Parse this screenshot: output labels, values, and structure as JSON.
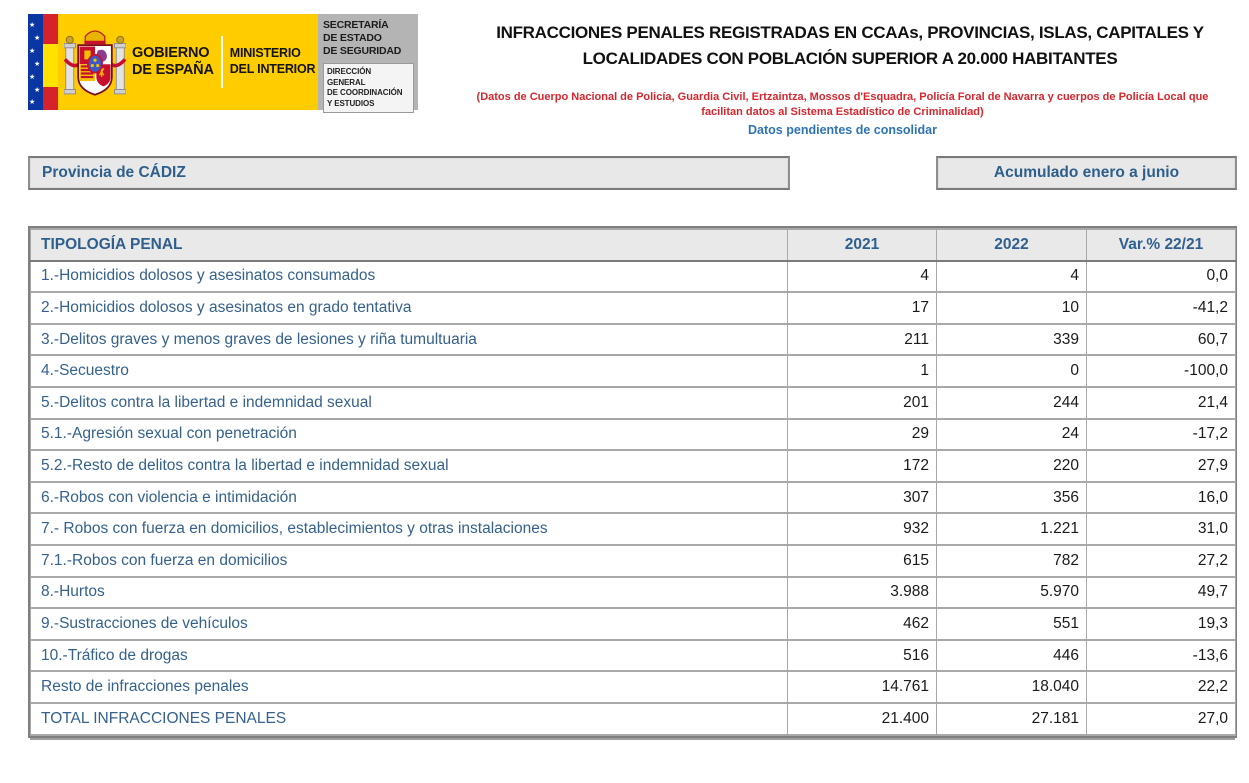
{
  "logo": {
    "star_glyph": "★",
    "gobierno_line1": "GOBIERNO",
    "gobierno_line2": "DE ESPAÑA",
    "ministerio_line1": "MINISTERIO",
    "ministerio_line2": "DEL INTERIOR",
    "secretaria_lines": [
      "SECRETARÍA",
      "DE ESTADO",
      "DE SEGURIDAD"
    ],
    "direccion_lines": [
      "DIRECCIÓN GENERAL",
      "DE COORDINACIÓN",
      "Y ESTUDIOS"
    ]
  },
  "header": {
    "title_line1": "INFRACCIONES PENALES REGISTRADAS EN CCAAs, PROVINCIAS, ISLAS, CAPITALES Y",
    "title_line2": "LOCALIDADES CON POBLACIÓN SUPERIOR A 20.000 HABITANTES",
    "source_note_line1": "(Datos de Cuerpo Nacional de Policía, Guardia Civil, Ertzaintza, Mossos d'Esquadra, Policía Foral de Navarra y cuerpos de Policía Local que",
    "source_note_line2": "facilitan datos al Sistema Estadístico de Criminalidad)",
    "status_note": "Datos pendientes de consolidar"
  },
  "scope": {
    "province": "Provincia de CÁDIZ",
    "period": "Acumulado enero a junio"
  },
  "table": {
    "columns": [
      "TIPOLOGÍA PENAL",
      "2021",
      "2022",
      "Var.% 22/21"
    ],
    "rows": [
      {
        "label": "1.-Homicidios dolosos y asesinatos consumados",
        "v2021": "4",
        "v2022": "4",
        "variation": "0,0"
      },
      {
        "label": "2.-Homicidios dolosos y asesinatos en grado tentativa",
        "v2021": "17",
        "v2022": "10",
        "variation": "-41,2"
      },
      {
        "label": "3.-Delitos graves y menos graves de lesiones y riña tumultuaria",
        "v2021": "211",
        "v2022": "339",
        "variation": "60,7"
      },
      {
        "label": "4.-Secuestro",
        "v2021": "1",
        "v2022": "0",
        "variation": "-100,0"
      },
      {
        "label": "5.-Delitos contra la libertad e indemnidad sexual",
        "v2021": "201",
        "v2022": "244",
        "variation": "21,4"
      },
      {
        "label": "5.1.-Agresión sexual con penetración",
        "v2021": "29",
        "v2022": "24",
        "variation": "-17,2"
      },
      {
        "label": "5.2.-Resto de delitos contra la libertad e indemnidad sexual",
        "v2021": "172",
        "v2022": "220",
        "variation": "27,9"
      },
      {
        "label": "6.-Robos con violencia e intimidación",
        "v2021": "307",
        "v2022": "356",
        "variation": "16,0"
      },
      {
        "label": "7.- Robos con fuerza en domicilios, establecimientos y otras instalaciones",
        "v2021": "932",
        "v2022": "1.221",
        "variation": "31,0"
      },
      {
        "label": "7.1.-Robos con fuerza en domicilios",
        "v2021": "615",
        "v2022": "782",
        "variation": "27,2"
      },
      {
        "label": "8.-Hurtos",
        "v2021": "3.988",
        "v2022": "5.970",
        "variation": "49,7"
      },
      {
        "label": "9.-Sustracciones de vehículos",
        "v2021": "462",
        "v2022": "551",
        "variation": "19,3"
      },
      {
        "label": "10.-Tráfico de drogas",
        "v2021": "516",
        "v2022": "446",
        "variation": "-13,6"
      },
      {
        "label": "Resto de infracciones penales",
        "v2021": "14.761",
        "v2022": "18.040",
        "variation": "22,2"
      },
      {
        "label": "TOTAL INFRACCIONES PENALES",
        "v2021": "21.400",
        "v2022": "27.181",
        "variation": "27,0"
      }
    ]
  },
  "colors": {
    "accent_blue": "#2e5f8c",
    "table_label_blue": "#35618c",
    "note_red": "#d8262e",
    "note_blue": "#2e74b5",
    "flag_yellow": "#ffcc00",
    "flag_red": "#d6232b",
    "eu_blue": "#0a36a3",
    "logo_gray": "#b4b4b4",
    "header_row_bg": "#e9e9e9",
    "scope_box_bg": "#e8e8e8"
  }
}
